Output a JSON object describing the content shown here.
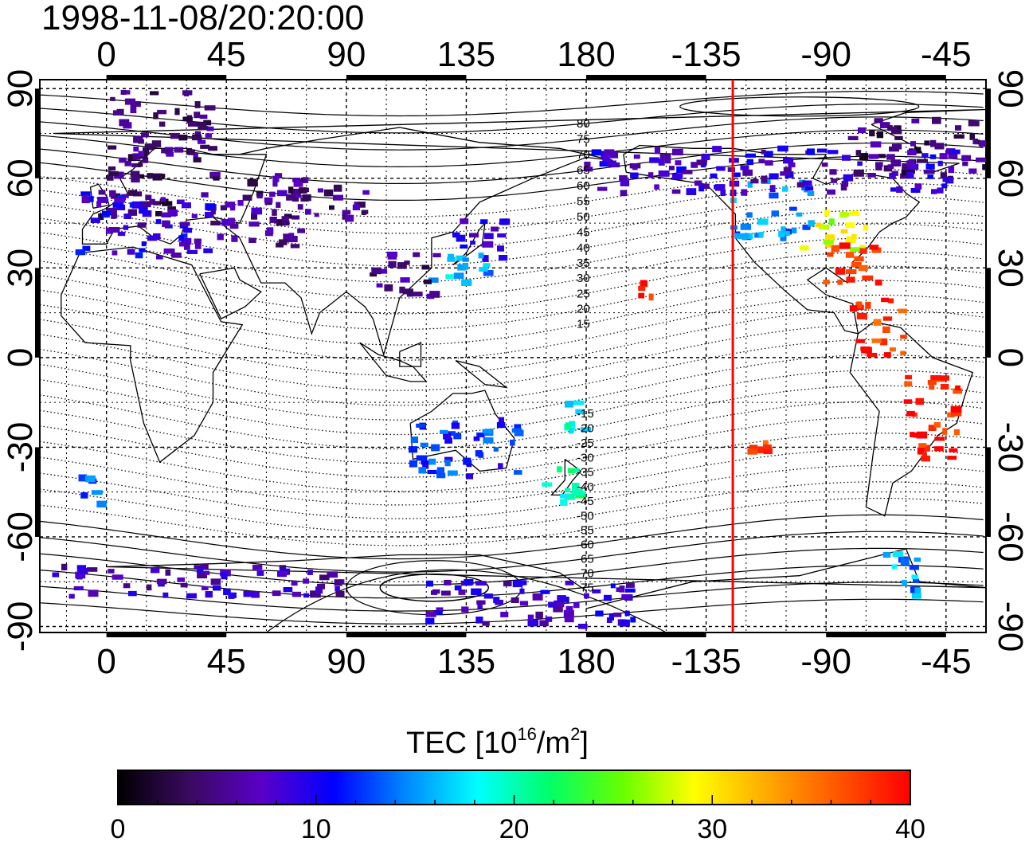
{
  "title": "1998-11-08/20:20:00",
  "map": {
    "lon_ticks": [
      {
        "lon": 0,
        "label": "0"
      },
      {
        "lon": 45,
        "label": "45"
      },
      {
        "lon": 90,
        "label": "90"
      },
      {
        "lon": 135,
        "label": "135"
      },
      {
        "lon": 180,
        "label": "180"
      },
      {
        "lon": 225,
        "label": "-135"
      },
      {
        "lon": 270,
        "label": "-90"
      },
      {
        "lon": 315,
        "label": "-45"
      }
    ],
    "lat_ticks": [
      {
        "lat": 90,
        "label": "90"
      },
      {
        "lat": 60,
        "label": "60"
      },
      {
        "lat": 30,
        "label": "30"
      },
      {
        "lat": 0,
        "label": "0"
      },
      {
        "lat": -30,
        "label": "-30"
      },
      {
        "lat": -60,
        "label": "-60"
      },
      {
        "lat": -90,
        "label": "-90"
      }
    ],
    "lon_range": [
      -25,
      330
    ],
    "lat_range": [
      -92,
      93
    ],
    "dotted_grid": true,
    "terminator_longitude": -125,
    "terminator_color": "#ff0000",
    "magnetic_latitude_labels": [
      "80",
      "75",
      "70",
      "65",
      "60",
      "55",
      "50",
      "45",
      "40",
      "35",
      "30",
      "25",
      "20",
      "15",
      "-15",
      "-20",
      "-25",
      "-30",
      "-35",
      "-40",
      "-45",
      "-50",
      "-55",
      "-60",
      "-65",
      "-70",
      "-75"
    ],
    "magnetic_latitude_label_lon": 180,
    "magnetic_contour_step_deg": 5
  },
  "colorbar": {
    "title_main": "TEC  [10",
    "title_exp": "16",
    "title_unit": "/m",
    "title_exp2": "2",
    "title_close": "]",
    "min": 0,
    "max": 40,
    "ticks": [
      "0",
      "10",
      "20",
      "30",
      "40"
    ],
    "stops": [
      "#000000",
      "#3a0a60",
      "#5a00c8",
      "#0000ff",
      "#0088ff",
      "#00ffff",
      "#00ff66",
      "#66ff00",
      "#ffff00",
      "#ffaa00",
      "#ff5500",
      "#ff0000"
    ]
  },
  "chart_data": {
    "type": "heatmap",
    "title": "1998-11-08/20:20:00",
    "xlabel": "",
    "ylabel": "",
    "colorbar_label": "TEC [10^16/m^2]",
    "value_range": [
      0,
      40
    ],
    "regions": [
      {
        "lon": [
          -5,
          25
        ],
        "lat": [
          44,
          68
        ],
        "tec": 4
      },
      {
        "lon": [
          -10,
          40
        ],
        "lat": [
          33,
          55
        ],
        "tec": 9
      },
      {
        "lon": [
          40,
          75
        ],
        "lat": [
          37,
          62
        ],
        "tec": 5
      },
      {
        "lon": [
          60,
          100
        ],
        "lat": [
          45,
          58
        ],
        "tec": 5
      },
      {
        "lon": [
          130,
          150
        ],
        "lat": [
          32,
          46
        ],
        "tec": 9
      },
      {
        "lon": [
          120,
          145
        ],
        "lat": [
          25,
          35
        ],
        "tec": 16
      },
      {
        "lon": [
          100,
          125
        ],
        "lat": [
          20,
          35
        ],
        "tec": 5
      },
      {
        "lon": [
          -125,
          -95
        ],
        "lat": [
          40,
          60
        ],
        "tec": 14
      },
      {
        "lon": [
          -100,
          -75
        ],
        "lat": [
          35,
          50
        ],
        "tec": 28
      },
      {
        "lon": [
          -90,
          -70
        ],
        "lat": [
          25,
          40
        ],
        "tec": 38
      },
      {
        "lon": [
          -160,
          -155
        ],
        "lat": [
          18,
          25
        ],
        "tec": 39
      },
      {
        "lon": [
          -80,
          -60
        ],
        "lat": [
          0,
          20
        ],
        "tec": 38
      },
      {
        "lon": [
          -60,
          -40
        ],
        "lat": [
          -35,
          -5
        ],
        "tec": 39
      },
      {
        "lon": [
          -120,
          -110
        ],
        "lat": [
          -32,
          -28
        ],
        "tec": 38
      },
      {
        "lon": [
          165,
          180
        ],
        "lat": [
          -50,
          -35
        ],
        "tec": 20
      },
      {
        "lon": [
          165,
          180
        ],
        "lat": [
          -25,
          -15
        ],
        "tec": 19
      },
      {
        "lon": [
          115,
          155
        ],
        "lat": [
          -40,
          -20
        ],
        "tec": 12
      },
      {
        "lon": [
          -70,
          -55
        ],
        "lat": [
          -80,
          -65
        ],
        "tec": 15
      },
      {
        "lon": [
          -20,
          90
        ],
        "lat": [
          -80,
          -70
        ],
        "tec": 7
      },
      {
        "lon": [
          120,
          200
        ],
        "lat": [
          -90,
          -75
        ],
        "tec": 8
      },
      {
        "lon": [
          -10,
          0
        ],
        "lat": [
          -50,
          -40
        ],
        "tec": 14
      },
      {
        "lon": [
          0,
          40
        ],
        "lat": [
          65,
          90
        ],
        "tec": 5
      },
      {
        "lon": [
          -80,
          -30
        ],
        "lat": [
          60,
          80
        ],
        "tec": 4
      },
      {
        "lon": [
          -180,
          -40
        ],
        "lat": [
          55,
          70
        ],
        "tec": 8
      }
    ]
  }
}
